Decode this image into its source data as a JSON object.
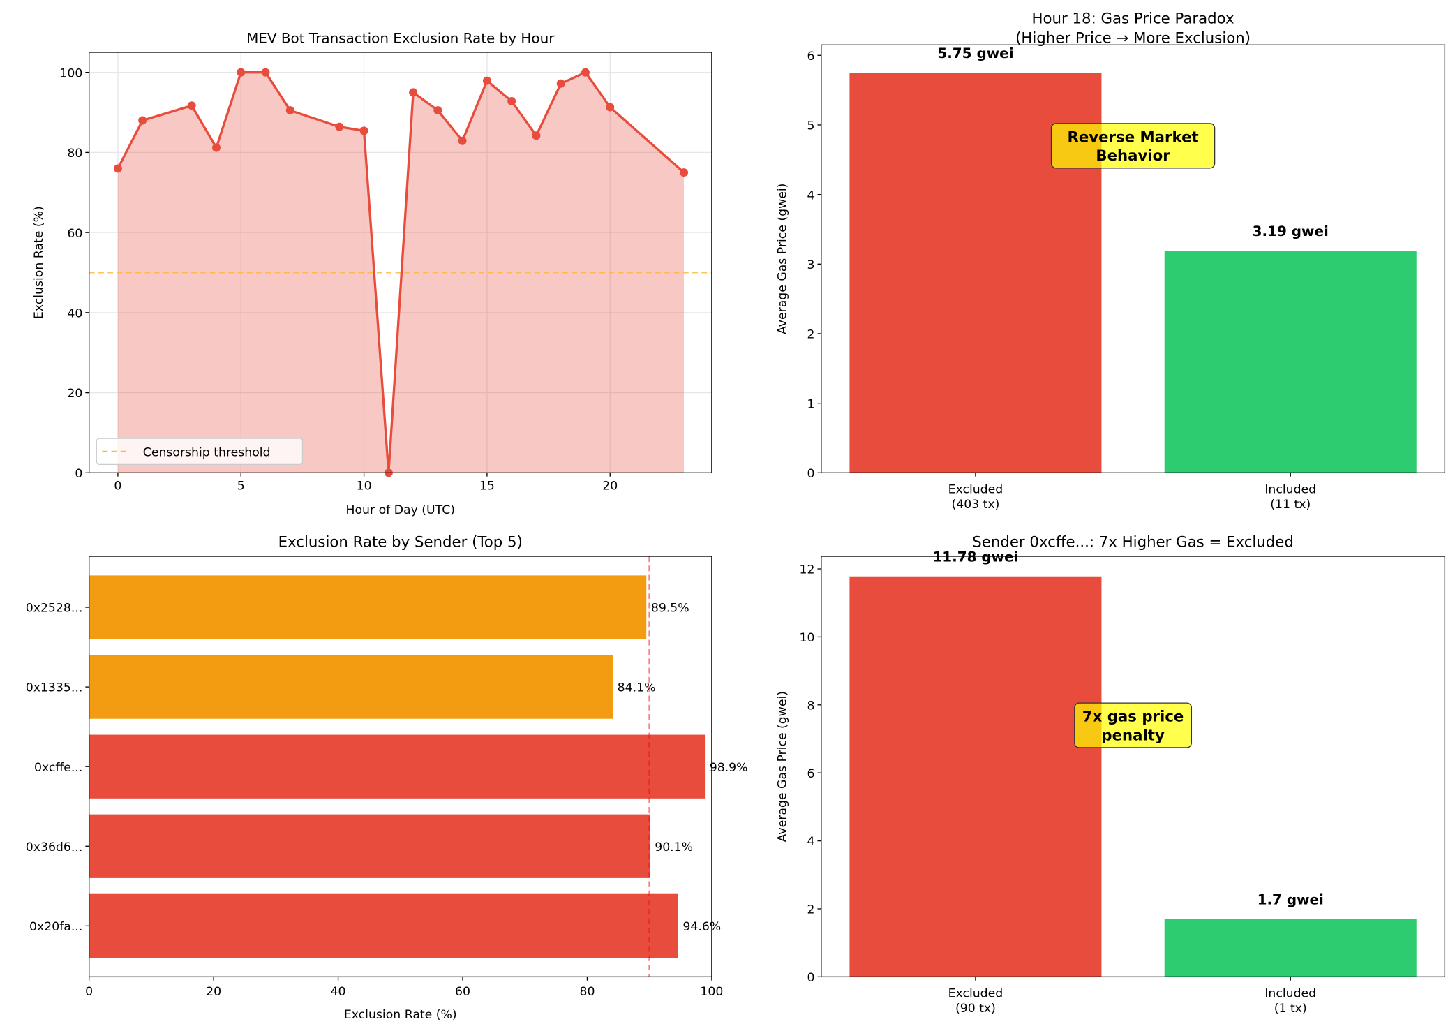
{
  "chart_data": [
    {
      "type": "line",
      "title": "MEV Bot Transaction Exclusion Rate by Hour",
      "xlabel": "Hour of Day (UTC)",
      "ylabel": "Exclusion Rate (%)",
      "x": [
        0,
        1,
        3,
        4,
        5,
        6,
        7,
        9,
        10,
        11,
        12,
        13,
        14,
        15,
        16,
        17,
        18,
        19,
        20,
        23
      ],
      "values": [
        76,
        88,
        91.7,
        81.2,
        100,
        100,
        90.5,
        86.4,
        85.4,
        0,
        95,
        90.5,
        82.9,
        97.9,
        92.8,
        84.2,
        97.2,
        100,
        91.3,
        75
      ],
      "xlim": [
        -1.17,
        24.13
      ],
      "ylim": [
        0,
        105
      ],
      "xticks": [
        0,
        5,
        10,
        15,
        20
      ],
      "yticks": [
        0,
        20,
        40,
        60,
        80,
        100
      ],
      "threshold": {
        "value": 50,
        "label": "Censorship threshold"
      },
      "legend": "lower-left",
      "grid": true,
      "colors": {
        "line": "#e74c3c",
        "threshold": "#ffb732"
      }
    },
    {
      "type": "bar",
      "title": "Hour 18: Gas Price Paradox",
      "subtitle": "(Higher Price → More Exclusion)",
      "ylabel": "Average Gas Price (gwei)",
      "categories": [
        [
          "Excluded",
          "(403 tx)"
        ],
        [
          "Included",
          "(11 tx)"
        ]
      ],
      "values": [
        5.75,
        3.19
      ],
      "labels": [
        "5.75 gwei",
        "3.19 gwei"
      ],
      "colors": [
        "#e74c3c",
        "#2ecc71"
      ],
      "ylim": [
        0,
        6.15
      ],
      "yticks": [
        0,
        1,
        2,
        3,
        4,
        5,
        6
      ],
      "annotation": {
        "lines": [
          "Reverse Market",
          "Behavior"
        ],
        "x": 0.5,
        "y": 4.7
      }
    },
    {
      "type": "barh",
      "title": "Exclusion Rate by Sender (Top 5)",
      "xlabel": "Exclusion Rate (%)",
      "categories": [
        "0x20fa...",
        "0x36d6...",
        "0xcffe...",
        "0x1335...",
        "0x2528..."
      ],
      "values": [
        94.6,
        90.1,
        98.9,
        84.1,
        89.5
      ],
      "labels": [
        "94.6%",
        "90.1%",
        "98.9%",
        "84.1%",
        "89.5%"
      ],
      "colors": [
        "#e74c3c",
        "#e74c3c",
        "#e74c3c",
        "#f39c12",
        "#f39c12"
      ],
      "xlim": [
        0,
        100
      ],
      "xticks": [
        0,
        20,
        40,
        60,
        80,
        100
      ],
      "threshold": 90
    },
    {
      "type": "bar",
      "title": "Sender 0xcffe...: 7x Higher Gas = Excluded",
      "ylabel": "Average Gas Price (gwei)",
      "categories": [
        [
          "Excluded",
          "(90 tx)"
        ],
        [
          "Included",
          "(1 tx)"
        ]
      ],
      "values": [
        11.78,
        1.7
      ],
      "labels": [
        "11.78 gwei",
        "1.7 gwei"
      ],
      "colors": [
        "#e74c3c",
        "#2ecc71"
      ],
      "ylim": [
        0,
        12.37
      ],
      "yticks": [
        0,
        2,
        4,
        6,
        8,
        10,
        12
      ],
      "annotation": {
        "lines": [
          "7x gas price",
          "penalty"
        ],
        "x": 0.5,
        "y": 7.4
      }
    }
  ]
}
